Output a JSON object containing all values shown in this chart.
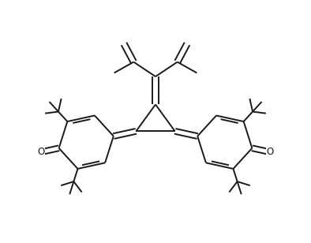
{
  "bg_color": "#ffffff",
  "line_color": "#1a1a1a",
  "line_width": 1.4,
  "fig_width": 3.94,
  "fig_height": 3.08,
  "dpi": 100
}
